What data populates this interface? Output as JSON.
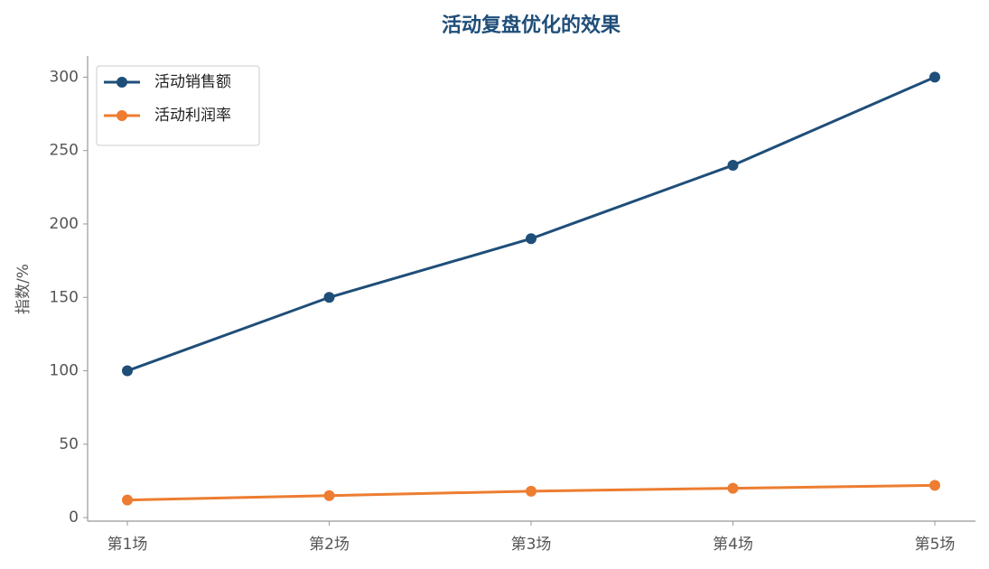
{
  "chart_data": {
    "type": "line",
    "title": "活动复盘优化的效果",
    "y_label": "指数/%",
    "categories": [
      "第1场",
      "第2场",
      "第3场",
      "第4场",
      "第5场"
    ],
    "series": [
      {
        "name": "活动销售额",
        "color": "#1f4e79",
        "values": [
          100,
          150,
          190,
          240,
          300
        ]
      },
      {
        "name": "活动利润率",
        "color": "#ed7d31",
        "values": [
          12,
          15,
          18,
          20,
          22
        ]
      }
    ],
    "ylim": [
      -2.4,
      314.4
    ],
    "yticks": [
      0,
      50,
      100,
      150,
      200,
      250,
      300
    ],
    "grid": false,
    "legend": "upper-left"
  }
}
